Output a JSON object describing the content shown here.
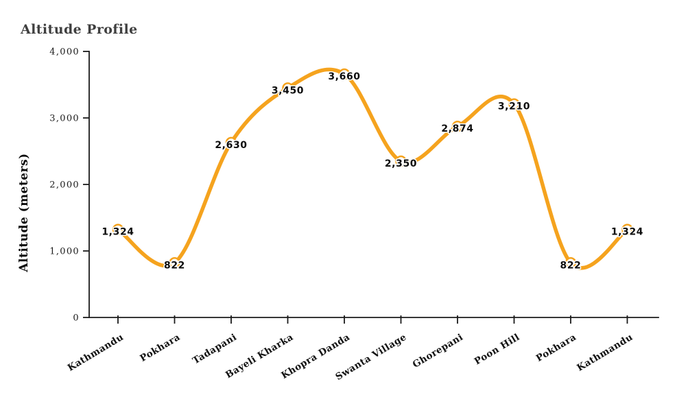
{
  "title": "Altitude Profile",
  "chart_data": {
    "type": "line",
    "title": "Altitude Profile",
    "xlabel": "",
    "ylabel": "Altitude (meters)",
    "categories": [
      "Kathmandu",
      "Pokhara",
      "Tadapani",
      "Bayeli Kharka",
      "Khopra Danda",
      "Swanta Village",
      "Ghorepani",
      "Poon Hill",
      "Pokhara",
      "Kathmandu"
    ],
    "values": [
      1324,
      822,
      2630,
      3450,
      3660,
      2350,
      2874,
      3210,
      822,
      1324
    ],
    "point_labels": [
      "1,324",
      "822",
      "2,630",
      "3,450",
      "3,660",
      "2,350",
      "2,874",
      "3,210",
      "822",
      "1,324"
    ],
    "y_ticks": [
      0,
      1000,
      2000,
      3000,
      4000
    ],
    "y_tick_labels": [
      "0",
      "1,000",
      "2,000",
      "3,000",
      "4,000"
    ],
    "ylim": [
      0,
      4000
    ],
    "grid": false,
    "legend_position": "none",
    "smooth": true,
    "line_color": "#F5A31E",
    "marker_fill": "#FFFFFF",
    "marker_stroke": "#F5A31E",
    "label_color": "#0D0D0D",
    "axis_color": "#1A1A1A",
    "title_color": "#3F3F3F"
  }
}
